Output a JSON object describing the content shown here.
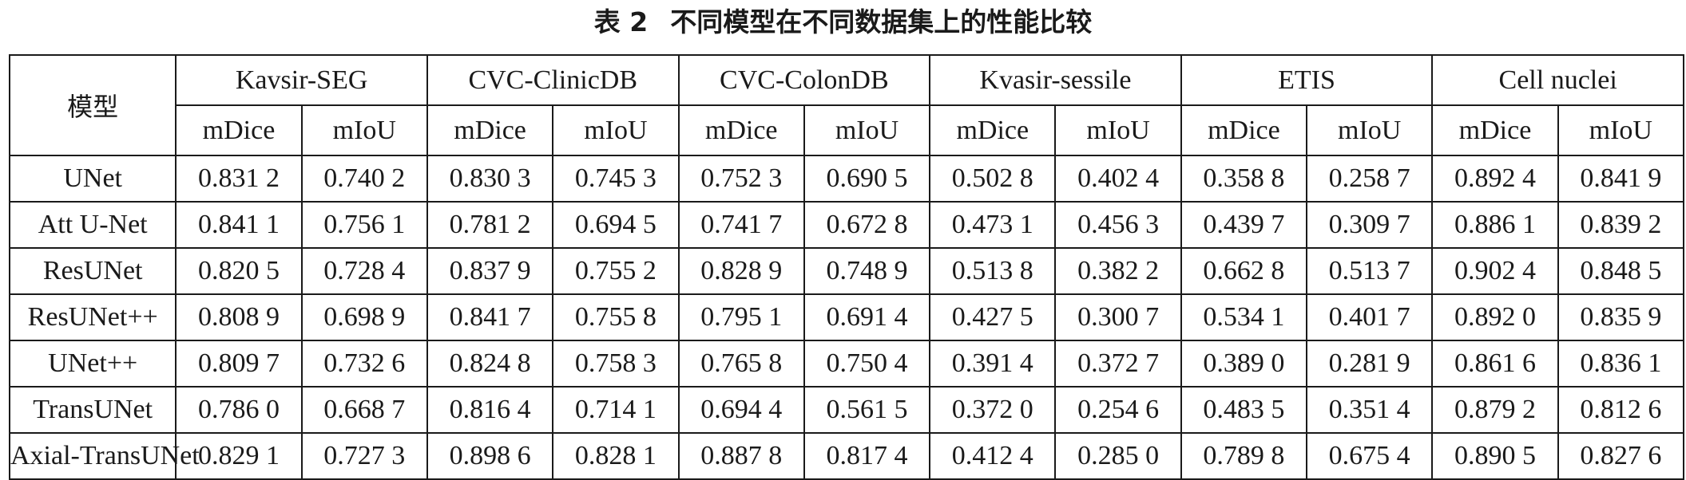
{
  "caption": {
    "number": "表 2",
    "title": "不同模型在不同数据集上的性能比较"
  },
  "table": {
    "model_header": "模型",
    "datasets": [
      "Kavsir-SEG",
      "CVC-ClinicDB",
      "CVC-ColonDB",
      "Kvasir-sessile",
      "ETIS",
      "Cell nuclei"
    ],
    "metrics": [
      "mDice",
      "mIoU"
    ],
    "rows": [
      {
        "model": "UNet",
        "values": [
          "0.831 2",
          "0.740 2",
          "0.830 3",
          "0.745 3",
          "0.752 3",
          "0.690 5",
          "0.502 8",
          "0.402 4",
          "0.358 8",
          "0.258 7",
          "0.892 4",
          "0.841 9"
        ]
      },
      {
        "model": "Att U-Net",
        "values": [
          "0.841 1",
          "0.756 1",
          "0.781 2",
          "0.694 5",
          "0.741 7",
          "0.672 8",
          "0.473 1",
          "0.456 3",
          "0.439 7",
          "0.309 7",
          "0.886 1",
          "0.839 2"
        ]
      },
      {
        "model": "ResUNet",
        "values": [
          "0.820 5",
          "0.728 4",
          "0.837 9",
          "0.755 2",
          "0.828 9",
          "0.748 9",
          "0.513 8",
          "0.382 2",
          "0.662 8",
          "0.513 7",
          "0.902 4",
          "0.848 5"
        ]
      },
      {
        "model": "ResUNet++",
        "values": [
          "0.808 9",
          "0.698 9",
          "0.841 7",
          "0.755 8",
          "0.795 1",
          "0.691 4",
          "0.427 5",
          "0.300 7",
          "0.534 1",
          "0.401 7",
          "0.892 0",
          "0.835 9"
        ]
      },
      {
        "model": "UNet++",
        "values": [
          "0.809 7",
          "0.732 6",
          "0.824 8",
          "0.758 3",
          "0.765 8",
          "0.750 4",
          "0.391 4",
          "0.372 7",
          "0.389 0",
          "0.281 9",
          "0.861 6",
          "0.836 1"
        ]
      },
      {
        "model": "TransUNet",
        "values": [
          "0.786 0",
          "0.668 7",
          "0.816 4",
          "0.714 1",
          "0.694 4",
          "0.561 5",
          "0.372 0",
          "0.254 6",
          "0.483 5",
          "0.351 4",
          "0.879 2",
          "0.812 6"
        ]
      },
      {
        "model": "Axial-TransUNet",
        "values": [
          "0.829 1",
          "0.727 3",
          "0.898 6",
          "0.828 1",
          "0.887 8",
          "0.817 4",
          "0.412 4",
          "0.285 0",
          "0.789 8",
          "0.675 4",
          "0.890 5",
          "0.827 6"
        ]
      }
    ]
  }
}
